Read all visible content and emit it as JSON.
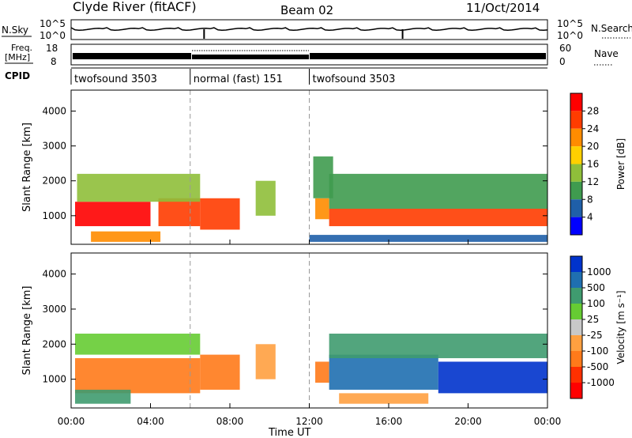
{
  "header": {
    "station": "Clyde River (fitACF)",
    "beam": "Beam 02",
    "date": "11/Oct/2014"
  },
  "noise_panel": {
    "left_label": "N.Sky",
    "right_label": "N.Search",
    "left_ticks": [
      "10^5",
      "10^0"
    ],
    "right_ticks": [
      "10^5",
      "10^0"
    ]
  },
  "freq_panel": {
    "left_label_line1": "Freq.",
    "left_label_line2": "[MHz]",
    "right_label": "Nave",
    "left_ticks": [
      "18",
      "8"
    ],
    "right_ticks": [
      "60",
      "0"
    ]
  },
  "cpid": {
    "label": "CPID",
    "segments": [
      {
        "name": "twofsound 3503",
        "start_hour": 0,
        "end_hour": 6
      },
      {
        "name": "normal (fast) 151",
        "start_hour": 6,
        "end_hour": 12
      },
      {
        "name": "twofsound 3503",
        "start_hour": 12,
        "end_hour": 24
      }
    ]
  },
  "chart_data": [
    {
      "type": "heatmap",
      "title": "",
      "xlabel": "",
      "ylabel": "Slant Range [km]",
      "xlim": [
        "00:00",
        "00:00"
      ],
      "ylim": [
        180,
        4600
      ],
      "x_ticks": [
        "00:00",
        "04:00",
        "08:00",
        "12:00",
        "16:00",
        "20:00",
        "00:00"
      ],
      "y_ticks": [
        1000,
        2000,
        3000,
        4000
      ],
      "colorbar": {
        "label": "Power [dB]",
        "ticks": [
          "28",
          "24",
          "20",
          "16",
          "12",
          "8",
          "4"
        ],
        "colors": [
          "#ff0000",
          "#ff3c00",
          "#ff8c00",
          "#ffd000",
          "#8fbf3a",
          "#3f9b4f",
          "#1f5fa8",
          "#0000ff"
        ]
      },
      "regions": [
        {
          "start_hour": 0.2,
          "end_hour": 4.0,
          "min_km": 700,
          "max_km": 1400,
          "level": "28"
        },
        {
          "start_hour": 4.4,
          "end_hour": 6.5,
          "min_km": 700,
          "max_km": 1500,
          "level": "24"
        },
        {
          "start_hour": 6.5,
          "end_hour": 8.5,
          "min_km": 600,
          "max_km": 1500,
          "level": "24"
        },
        {
          "start_hour": 0.3,
          "end_hour": 6.5,
          "min_km": 1400,
          "max_km": 2200,
          "level": "12"
        },
        {
          "start_hour": 1.0,
          "end_hour": 4.5,
          "min_km": 250,
          "max_km": 550,
          "level": "20"
        },
        {
          "start_hour": 9.3,
          "end_hour": 10.3,
          "min_km": 1000,
          "max_km": 2000,
          "level": "12"
        },
        {
          "start_hour": 12.3,
          "end_hour": 13.0,
          "min_km": 900,
          "max_km": 1500,
          "level": "20"
        },
        {
          "start_hour": 12.2,
          "end_hour": 13.2,
          "min_km": 1500,
          "max_km": 2700,
          "level": "8"
        },
        {
          "start_hour": 13.0,
          "end_hour": 24.0,
          "min_km": 700,
          "max_km": 1200,
          "level": "24"
        },
        {
          "start_hour": 13.0,
          "end_hour": 24.0,
          "min_km": 1200,
          "max_km": 2200,
          "level": "8"
        },
        {
          "start_hour": 12.0,
          "end_hour": 24.0,
          "min_km": 250,
          "max_km": 450,
          "level": "4"
        }
      ]
    },
    {
      "type": "heatmap",
      "title": "",
      "xlabel": "Time UT",
      "ylabel": "Slant Range [km]",
      "xlim": [
        "00:00",
        "00:00"
      ],
      "ylim": [
        180,
        4600
      ],
      "x_ticks": [
        "00:00",
        "04:00",
        "08:00",
        "12:00",
        "16:00",
        "20:00",
        "00:00"
      ],
      "y_ticks": [
        1000,
        2000,
        3000,
        4000
      ],
      "colorbar": {
        "label": "Velocity [m s⁻¹]",
        "ticks": [
          "1000",
          "500",
          "100",
          "25",
          "-25",
          "-100",
          "-500",
          "-1000"
        ],
        "colors": [
          "#0033cc",
          "#1f6fb0",
          "#3f9b6f",
          "#66cc33",
          "#c8c8c8",
          "#ffa040",
          "#ff7a1a",
          "#ff3000",
          "#ff0000"
        ]
      },
      "regions": [
        {
          "start_hour": 0.2,
          "end_hour": 6.5,
          "min_km": 600,
          "max_km": 1600,
          "level": "-500"
        },
        {
          "start_hour": 6.5,
          "end_hour": 8.5,
          "min_km": 700,
          "max_km": 1700,
          "level": "-500"
        },
        {
          "start_hour": 0.2,
          "end_hour": 6.5,
          "min_km": 1700,
          "max_km": 2300,
          "level": "25"
        },
        {
          "start_hour": 0.2,
          "end_hour": 3.0,
          "min_km": 300,
          "max_km": 700,
          "level": "100"
        },
        {
          "start_hour": 9.3,
          "end_hour": 10.3,
          "min_km": 1000,
          "max_km": 2000,
          "level": "-100"
        },
        {
          "start_hour": 12.3,
          "end_hour": 13.0,
          "min_km": 900,
          "max_km": 1500,
          "level": "-500"
        },
        {
          "start_hour": 13.0,
          "end_hour": 18.5,
          "min_km": 700,
          "max_km": 1700,
          "level": "500"
        },
        {
          "start_hour": 18.5,
          "end_hour": 24.0,
          "min_km": 600,
          "max_km": 1500,
          "level": "1000"
        },
        {
          "start_hour": 13.0,
          "end_hour": 24.0,
          "min_km": 1600,
          "max_km": 2300,
          "level": "100"
        },
        {
          "start_hour": 13.5,
          "end_hour": 18.0,
          "min_km": 300,
          "max_km": 600,
          "level": "-100"
        }
      ]
    }
  ]
}
